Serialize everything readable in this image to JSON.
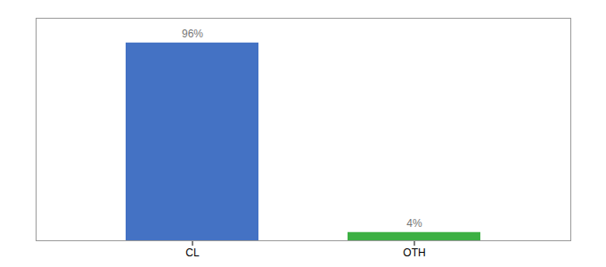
{
  "chart_data": {
    "type": "bar",
    "categories": [
      "CL",
      "OTH"
    ],
    "values": [
      96,
      4
    ],
    "value_labels": [
      "96%",
      "4%"
    ],
    "colors": [
      "#4472c4",
      "#3cb043"
    ],
    "ylim": [
      0,
      108
    ],
    "data_labels": true,
    "tick_labels": "x"
  }
}
